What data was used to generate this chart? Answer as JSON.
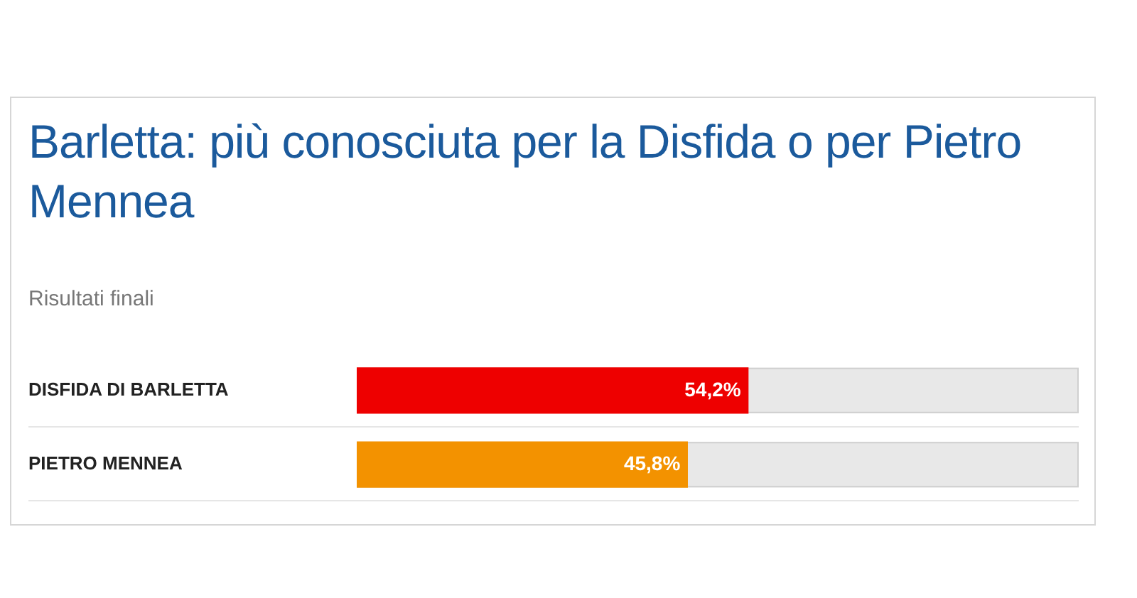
{
  "chart_data": {
    "type": "bar",
    "orientation": "horizontal",
    "title": "Barletta: più conosciuta per la Disfida o per Pietro Mennea",
    "subtitle": "Risultati finali",
    "categories": [
      "DISFIDA DI BARLETTA",
      "PIETRO MENNEA"
    ],
    "values": [
      54.2,
      45.8
    ],
    "colors": [
      "#ee0000",
      "#f39200"
    ],
    "value_labels": [
      "54,2%",
      "45,8%"
    ],
    "xlim": [
      0,
      100
    ]
  }
}
